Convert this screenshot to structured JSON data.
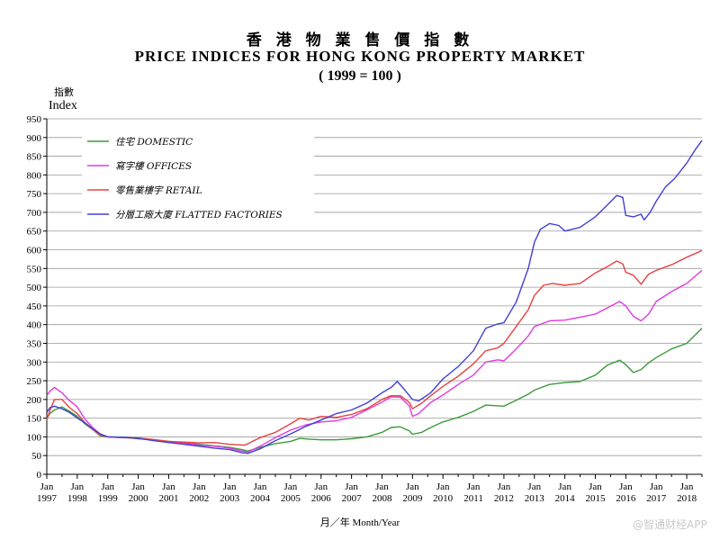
{
  "header": {
    "title_zh": "香 港 物 業 售 價 指 數",
    "title_en": "PRICE INDICES FOR HONG KONG PROPERTY MARKET",
    "subtitle": "( 1999 = 100 )"
  },
  "axes": {
    "ylabel_zh": "指數",
    "ylabel_en": "Index",
    "xlabel": "月／年   Month/Year"
  },
  "watermark": "@智通财经APP",
  "chart_data": {
    "type": "line",
    "title": "PRICE INDICES FOR HONG KONG PROPERTY MARKET",
    "subtitle": "( 1999 = 100 )",
    "ylabel": "Index",
    "xlabel": "Month/Year",
    "ylim": [
      0,
      950
    ],
    "yticks": [
      0,
      50,
      100,
      150,
      200,
      250,
      300,
      350,
      400,
      450,
      500,
      550,
      600,
      650,
      700,
      750,
      800,
      850,
      900,
      950
    ],
    "xlim": [
      1997.0,
      2018.5
    ],
    "xticks": [
      {
        "x": 1997,
        "top": "Jan",
        "bottom": "1997"
      },
      {
        "x": 1998,
        "top": "Jan",
        "bottom": "1998"
      },
      {
        "x": 1999,
        "top": "Jan",
        "bottom": "1999"
      },
      {
        "x": 2000,
        "top": "Jan",
        "bottom": "2000"
      },
      {
        "x": 2001,
        "top": "Jan",
        "bottom": "2001"
      },
      {
        "x": 2002,
        "top": "Jan",
        "bottom": "2002"
      },
      {
        "x": 2003,
        "top": "Jan",
        "bottom": "2003"
      },
      {
        "x": 2004,
        "top": "Jan",
        "bottom": "2004"
      },
      {
        "x": 2005,
        "top": "Jan",
        "bottom": "2005"
      },
      {
        "x": 2006,
        "top": "Jan",
        "bottom": "2006"
      },
      {
        "x": 2007,
        "top": "Jan",
        "bottom": "2007"
      },
      {
        "x": 2008,
        "top": "Jan",
        "bottom": "2008"
      },
      {
        "x": 2009,
        "top": "Jan",
        "bottom": "2009"
      },
      {
        "x": 2010,
        "top": "Jan",
        "bottom": "2010"
      },
      {
        "x": 2011,
        "top": "Jan",
        "bottom": "2011"
      },
      {
        "x": 2012,
        "top": "Jan",
        "bottom": "2012"
      },
      {
        "x": 2013,
        "top": "Jan",
        "bottom": "2013"
      },
      {
        "x": 2014,
        "top": "Jan",
        "bottom": "2014"
      },
      {
        "x": 2015,
        "top": "Jan",
        "bottom": "2015"
      },
      {
        "x": 2016,
        "top": "Jan",
        "bottom": "2016"
      },
      {
        "x": 2017,
        "top": "Jan",
        "bottom": "2017"
      },
      {
        "x": 2018,
        "top": "Jan",
        "bottom": "2018"
      }
    ],
    "grid": "horizontal",
    "legend_position": "top-left",
    "series": [
      {
        "name": "住宅  DOMESTIC",
        "color": "#3a9a3a",
        "points": [
          [
            1997.0,
            150
          ],
          [
            1997.1,
            162
          ],
          [
            1997.25,
            172
          ],
          [
            1997.5,
            180
          ],
          [
            1997.75,
            168
          ],
          [
            1998.0,
            155
          ],
          [
            1998.25,
            135
          ],
          [
            1998.5,
            120
          ],
          [
            1998.75,
            103
          ],
          [
            1999.0,
            100
          ],
          [
            1999.5,
            99
          ],
          [
            2000.0,
            95
          ],
          [
            2000.5,
            92
          ],
          [
            2001.0,
            88
          ],
          [
            2001.5,
            84
          ],
          [
            2002.0,
            80
          ],
          [
            2002.5,
            76
          ],
          [
            2003.0,
            72
          ],
          [
            2003.4,
            66
          ],
          [
            2003.6,
            62
          ],
          [
            2004.0,
            72
          ],
          [
            2004.5,
            82
          ],
          [
            2005.0,
            88
          ],
          [
            2005.3,
            96
          ],
          [
            2005.6,
            94
          ],
          [
            2006.0,
            92
          ],
          [
            2006.5,
            92
          ],
          [
            2007.0,
            95
          ],
          [
            2007.5,
            100
          ],
          [
            2008.0,
            112
          ],
          [
            2008.3,
            125
          ],
          [
            2008.6,
            127
          ],
          [
            2008.9,
            116
          ],
          [
            2009.0,
            107
          ],
          [
            2009.3,
            112
          ],
          [
            2009.6,
            125
          ],
          [
            2010.0,
            140
          ],
          [
            2010.5,
            152
          ],
          [
            2011.0,
            168
          ],
          [
            2011.4,
            185
          ],
          [
            2011.8,
            183
          ],
          [
            2012.0,
            182
          ],
          [
            2012.4,
            198
          ],
          [
            2012.8,
            214
          ],
          [
            2013.0,
            225
          ],
          [
            2013.5,
            240
          ],
          [
            2014.0,
            245
          ],
          [
            2014.5,
            248
          ],
          [
            2015.0,
            265
          ],
          [
            2015.4,
            292
          ],
          [
            2015.8,
            305
          ],
          [
            2016.0,
            293
          ],
          [
            2016.25,
            272
          ],
          [
            2016.5,
            280
          ],
          [
            2016.75,
            298
          ],
          [
            2017.0,
            312
          ],
          [
            2017.5,
            335
          ],
          [
            2018.0,
            350
          ],
          [
            2018.5,
            390
          ]
        ]
      },
      {
        "name": "寫字樓  OFFICES",
        "color": "#e03ae0",
        "points": [
          [
            1997.0,
            210
          ],
          [
            1997.1,
            222
          ],
          [
            1997.25,
            232
          ],
          [
            1997.5,
            218
          ],
          [
            1997.7,
            200
          ],
          [
            1998.0,
            180
          ],
          [
            1998.25,
            148
          ],
          [
            1998.5,
            125
          ],
          [
            1998.75,
            108
          ],
          [
            1999.0,
            100
          ],
          [
            1999.5,
            98
          ],
          [
            2000.0,
            97
          ],
          [
            2000.5,
            92
          ],
          [
            2001.0,
            86
          ],
          [
            2001.5,
            83
          ],
          [
            2002.0,
            78
          ],
          [
            2002.5,
            75
          ],
          [
            2003.0,
            70
          ],
          [
            2003.4,
            62
          ],
          [
            2003.6,
            60
          ],
          [
            2004.0,
            75
          ],
          [
            2004.5,
            98
          ],
          [
            2005.0,
            118
          ],
          [
            2005.5,
            132
          ],
          [
            2006.0,
            140
          ],
          [
            2006.5,
            143
          ],
          [
            2007.0,
            152
          ],
          [
            2007.5,
            172
          ],
          [
            2008.0,
            193
          ],
          [
            2008.3,
            207
          ],
          [
            2008.6,
            206
          ],
          [
            2008.9,
            182
          ],
          [
            2009.0,
            155
          ],
          [
            2009.2,
            162
          ],
          [
            2009.6,
            192
          ],
          [
            2010.0,
            212
          ],
          [
            2010.5,
            240
          ],
          [
            2011.0,
            265
          ],
          [
            2011.4,
            300
          ],
          [
            2011.8,
            306
          ],
          [
            2012.0,
            303
          ],
          [
            2012.4,
            335
          ],
          [
            2012.8,
            370
          ],
          [
            2013.0,
            395
          ],
          [
            2013.5,
            410
          ],
          [
            2014.0,
            412
          ],
          [
            2014.5,
            420
          ],
          [
            2015.0,
            428
          ],
          [
            2015.4,
            445
          ],
          [
            2015.8,
            462
          ],
          [
            2016.0,
            450
          ],
          [
            2016.25,
            422
          ],
          [
            2016.5,
            410
          ],
          [
            2016.75,
            428
          ],
          [
            2017.0,
            462
          ],
          [
            2017.5,
            488
          ],
          [
            2018.0,
            510
          ],
          [
            2018.5,
            545
          ]
        ]
      },
      {
        "name": "零售業樓宇  RETAIL",
        "color": "#e84040",
        "points": [
          [
            1997.0,
            145
          ],
          [
            1997.1,
            170
          ],
          [
            1997.25,
            200
          ],
          [
            1997.5,
            200
          ],
          [
            1997.75,
            178
          ],
          [
            1998.0,
            162
          ],
          [
            1998.25,
            138
          ],
          [
            1998.5,
            120
          ],
          [
            1998.75,
            105
          ],
          [
            1999.0,
            100
          ],
          [
            1999.5,
            98
          ],
          [
            2000.0,
            97
          ],
          [
            2000.5,
            93
          ],
          [
            2001.0,
            88
          ],
          [
            2001.5,
            86
          ],
          [
            2002.0,
            84
          ],
          [
            2002.5,
            85
          ],
          [
            2003.0,
            80
          ],
          [
            2003.5,
            78
          ],
          [
            2004.0,
            98
          ],
          [
            2004.5,
            112
          ],
          [
            2005.0,
            135
          ],
          [
            2005.3,
            150
          ],
          [
            2005.6,
            145
          ],
          [
            2006.0,
            155
          ],
          [
            2006.5,
            152
          ],
          [
            2007.0,
            160
          ],
          [
            2007.5,
            175
          ],
          [
            2008.0,
            200
          ],
          [
            2008.3,
            210
          ],
          [
            2008.6,
            210
          ],
          [
            2008.9,
            192
          ],
          [
            2009.0,
            175
          ],
          [
            2009.3,
            190
          ],
          [
            2009.6,
            210
          ],
          [
            2010.0,
            235
          ],
          [
            2010.5,
            262
          ],
          [
            2011.0,
            295
          ],
          [
            2011.4,
            330
          ],
          [
            2011.8,
            338
          ],
          [
            2012.0,
            350
          ],
          [
            2012.4,
            395
          ],
          [
            2012.8,
            440
          ],
          [
            2013.0,
            478
          ],
          [
            2013.3,
            505
          ],
          [
            2013.6,
            510
          ],
          [
            2014.0,
            505
          ],
          [
            2014.5,
            510
          ],
          [
            2015.0,
            538
          ],
          [
            2015.4,
            555
          ],
          [
            2015.7,
            570
          ],
          [
            2015.9,
            562
          ],
          [
            2016.0,
            540
          ],
          [
            2016.25,
            532
          ],
          [
            2016.5,
            508
          ],
          [
            2016.75,
            535
          ],
          [
            2017.0,
            545
          ],
          [
            2017.5,
            560
          ],
          [
            2018.0,
            580
          ],
          [
            2018.5,
            598
          ]
        ]
      },
      {
        "name": "分層工廠大廈  FLATTED FACTORIES",
        "color": "#4040d8",
        "points": [
          [
            1997.0,
            165
          ],
          [
            1997.1,
            178
          ],
          [
            1997.25,
            182
          ],
          [
            1997.5,
            175
          ],
          [
            1997.75,
            165
          ],
          [
            1998.0,
            150
          ],
          [
            1998.25,
            138
          ],
          [
            1998.5,
            122
          ],
          [
            1998.75,
            108
          ],
          [
            1999.0,
            100
          ],
          [
            1999.5,
            99
          ],
          [
            2000.0,
            96
          ],
          [
            2000.5,
            90
          ],
          [
            2001.0,
            85
          ],
          [
            2001.5,
            80
          ],
          [
            2002.0,
            75
          ],
          [
            2002.5,
            70
          ],
          [
            2003.0,
            66
          ],
          [
            2003.4,
            58
          ],
          [
            2003.6,
            56
          ],
          [
            2004.0,
            68
          ],
          [
            2004.5,
            90
          ],
          [
            2005.0,
            108
          ],
          [
            2005.5,
            128
          ],
          [
            2006.0,
            145
          ],
          [
            2006.5,
            162
          ],
          [
            2007.0,
            172
          ],
          [
            2007.5,
            190
          ],
          [
            2008.0,
            218
          ],
          [
            2008.3,
            232
          ],
          [
            2008.5,
            248
          ],
          [
            2008.7,
            230
          ],
          [
            2009.0,
            200
          ],
          [
            2009.2,
            196
          ],
          [
            2009.6,
            218
          ],
          [
            2010.0,
            255
          ],
          [
            2010.5,
            288
          ],
          [
            2011.0,
            330
          ],
          [
            2011.4,
            390
          ],
          [
            2011.8,
            402
          ],
          [
            2012.0,
            405
          ],
          [
            2012.4,
            460
          ],
          [
            2012.8,
            550
          ],
          [
            2013.0,
            620
          ],
          [
            2013.2,
            655
          ],
          [
            2013.5,
            670
          ],
          [
            2013.8,
            665
          ],
          [
            2014.0,
            650
          ],
          [
            2014.5,
            660
          ],
          [
            2015.0,
            688
          ],
          [
            2015.4,
            720
          ],
          [
            2015.7,
            745
          ],
          [
            2015.9,
            740
          ],
          [
            2016.0,
            692
          ],
          [
            2016.25,
            688
          ],
          [
            2016.5,
            695
          ],
          [
            2016.6,
            680
          ],
          [
            2016.8,
            700
          ],
          [
            2017.0,
            730
          ],
          [
            2017.3,
            768
          ],
          [
            2017.6,
            790
          ],
          [
            2018.0,
            832
          ],
          [
            2018.3,
            870
          ],
          [
            2018.5,
            892
          ]
        ]
      }
    ]
  }
}
